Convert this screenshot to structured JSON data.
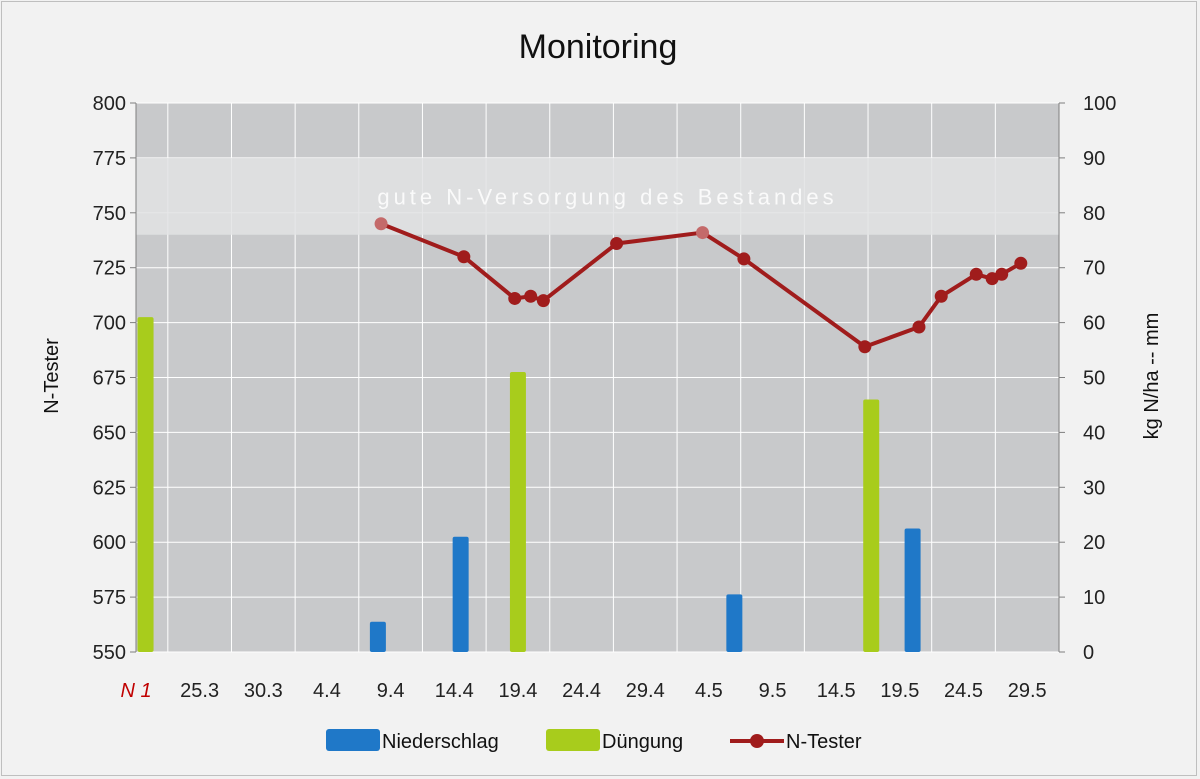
{
  "chart_data": {
    "type": "combo",
    "title": "Monitoring",
    "y_left": {
      "label": "N-Tester",
      "range": [
        550,
        800
      ],
      "ticks": [
        550,
        575,
        600,
        625,
        650,
        675,
        700,
        725,
        750,
        775,
        800
      ]
    },
    "y_right": {
      "label": "kg N/ha  --  mm",
      "range": [
        0,
        100
      ],
      "ticks": [
        0,
        10,
        20,
        30,
        40,
        50,
        60,
        70,
        80,
        90,
        100
      ]
    },
    "x_categories": [
      "N 1",
      "25.3",
      "30.3",
      "4.4",
      "9.4",
      "14.4",
      "19.4",
      "24.4",
      "29.4",
      "4.5",
      "9.5",
      "14.5",
      "19.5",
      "24.5",
      "29.5"
    ],
    "band": {
      "label": "gute N-Versorgung des Bestandes",
      "range": [
        740,
        775
      ]
    },
    "grid": true,
    "legend_position": "bottom",
    "colors": {
      "niederschlag": "#1f78c8",
      "duengung": "#a8cc1c",
      "ntester": "#a01c1c",
      "plot_bg": "#c8c9cb",
      "band": "#e2e3e4"
    },
    "series": [
      {
        "name": "Niederschlag",
        "type": "bar",
        "axis": "right",
        "unit": "mm",
        "points": [
          {
            "x": 3.8,
            "y": 5.5
          },
          {
            "x": 5.1,
            "y": 21
          },
          {
            "x": 9.4,
            "y": 10.5
          },
          {
            "x": 12.2,
            "y": 22.5
          }
        ]
      },
      {
        "name": "Düngung",
        "type": "bar",
        "axis": "right",
        "unit": "kg N/ha",
        "points": [
          {
            "x": 0.15,
            "y": 61
          },
          {
            "x": 6.0,
            "y": 51
          },
          {
            "x": 11.55,
            "y": 46
          }
        ]
      },
      {
        "name": "N-Tester",
        "type": "line",
        "axis": "left",
        "points": [
          {
            "x": 3.85,
            "y": 745
          },
          {
            "x": 5.15,
            "y": 730
          },
          {
            "x": 5.95,
            "y": 711
          },
          {
            "x": 6.2,
            "y": 712
          },
          {
            "x": 6.4,
            "y": 710
          },
          {
            "x": 7.55,
            "y": 736
          },
          {
            "x": 8.9,
            "y": 741
          },
          {
            "x": 9.55,
            "y": 729
          },
          {
            "x": 11.45,
            "y": 689
          },
          {
            "x": 12.3,
            "y": 698
          },
          {
            "x": 12.65,
            "y": 712
          },
          {
            "x": 13.2,
            "y": 722
          },
          {
            "x": 13.45,
            "y": 720
          },
          {
            "x": 13.6,
            "y": 722
          },
          {
            "x": 13.9,
            "y": 727
          }
        ]
      }
    ]
  }
}
